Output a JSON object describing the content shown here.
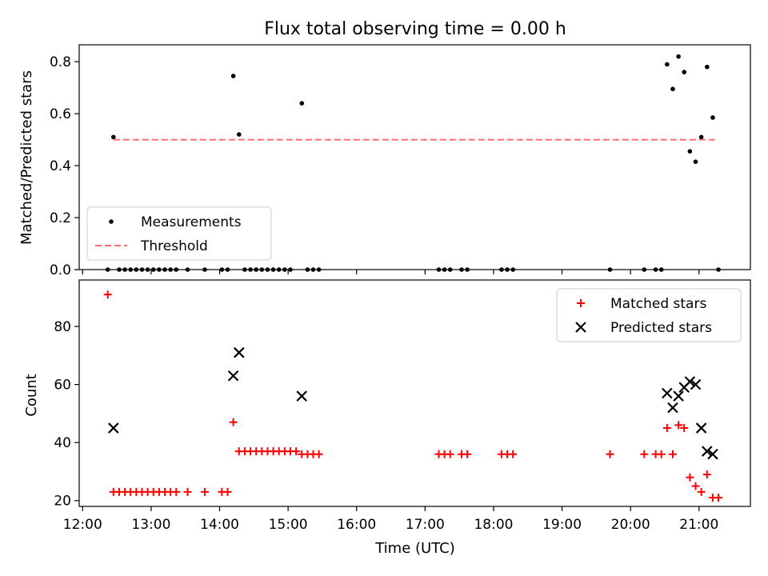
{
  "chart_data": [
    {
      "type": "scatter",
      "title": "Flux total observing time = 0.00 h",
      "xlabel": "",
      "ylabel": "Matched/Predicted stars",
      "xlim": [
        "11:57",
        "21:45"
      ],
      "ylim": [
        0,
        0.865
      ],
      "yticks": [
        "0.0",
        "0.2",
        "0.4",
        "0.6",
        "0.8"
      ],
      "ytick_values": [
        0,
        0.2,
        0.4,
        0.6,
        0.8
      ],
      "legend": {
        "placement": "lower-left",
        "entries": [
          "Measurements",
          "Threshold"
        ]
      },
      "threshold": {
        "name": "Threshold",
        "color": "#ff6f6f",
        "y": 0.5,
        "x": [
          "12:27",
          "21:15"
        ]
      },
      "series": [
        {
          "name": "Measurements",
          "color": "#000000",
          "points": [
            [
              "12:27",
              0.51
            ],
            [
              "14:12",
              0.745
            ],
            [
              "14:17",
              0.52
            ],
            [
              "15:12",
              0.64
            ],
            [
              "20:32",
              0.79
            ],
            [
              "20:37",
              0.695
            ],
            [
              "20:42",
              0.82
            ],
            [
              "20:47",
              0.76
            ],
            [
              "20:52",
              0.455
            ],
            [
              "20:57",
              0.415
            ],
            [
              "21:02",
              0.51
            ],
            [
              "21:07",
              0.78
            ],
            [
              "21:12",
              0.585
            ],
            [
              "12:22",
              0
            ],
            [
              "12:32",
              0
            ],
            [
              "12:37",
              0
            ],
            [
              "12:42",
              0
            ],
            [
              "12:47",
              0
            ],
            [
              "12:52",
              0
            ],
            [
              "12:57",
              0
            ],
            [
              "13:02",
              0
            ],
            [
              "13:07",
              0
            ],
            [
              "13:12",
              0
            ],
            [
              "13:17",
              0
            ],
            [
              "13:22",
              0
            ],
            [
              "13:32",
              0
            ],
            [
              "13:47",
              0
            ],
            [
              "14:02",
              0
            ],
            [
              "14:07",
              0
            ],
            [
              "14:22",
              0
            ],
            [
              "14:27",
              0
            ],
            [
              "14:32",
              0
            ],
            [
              "14:37",
              0
            ],
            [
              "14:42",
              0
            ],
            [
              "14:47",
              0
            ],
            [
              "14:52",
              0
            ],
            [
              "14:57",
              0
            ],
            [
              "15:02",
              0
            ],
            [
              "15:17",
              0
            ],
            [
              "15:22",
              0
            ],
            [
              "15:27",
              0
            ],
            [
              "17:12",
              0
            ],
            [
              "17:17",
              0
            ],
            [
              "17:22",
              0
            ],
            [
              "17:32",
              0
            ],
            [
              "17:37",
              0
            ],
            [
              "18:07",
              0
            ],
            [
              "18:12",
              0
            ],
            [
              "18:17",
              0
            ],
            [
              "19:42",
              0
            ],
            [
              "20:12",
              0
            ],
            [
              "20:22",
              0
            ],
            [
              "20:27",
              0
            ],
            [
              "21:17",
              0
            ]
          ]
        }
      ]
    },
    {
      "type": "scatter",
      "title": "",
      "xlabel": "Time (UTC)",
      "ylabel": "Count",
      "xlim": [
        "11:57",
        "21:45"
      ],
      "ylim": [
        18,
        96
      ],
      "xticks": [
        "12:00",
        "13:00",
        "14:00",
        "15:00",
        "16:00",
        "17:00",
        "18:00",
        "19:00",
        "20:00",
        "21:00"
      ],
      "yticks": [
        "20",
        "40",
        "60",
        "80"
      ],
      "ytick_values": [
        20,
        40,
        60,
        80
      ],
      "legend": {
        "placement": "upper-right",
        "entries": [
          "Matched stars",
          "Predicted stars"
        ]
      },
      "series": [
        {
          "name": "Matched stars",
          "color": "#ff0000",
          "marker": "plus",
          "points": [
            [
              "12:22",
              91
            ],
            [
              "12:27",
              23
            ],
            [
              "12:32",
              23
            ],
            [
              "12:37",
              23
            ],
            [
              "12:42",
              23
            ],
            [
              "12:47",
              23
            ],
            [
              "12:52",
              23
            ],
            [
              "12:57",
              23
            ],
            [
              "13:02",
              23
            ],
            [
              "13:07",
              23
            ],
            [
              "13:12",
              23
            ],
            [
              "13:17",
              23
            ],
            [
              "13:22",
              23
            ],
            [
              "13:32",
              23
            ],
            [
              "13:47",
              23
            ],
            [
              "14:02",
              23
            ],
            [
              "14:07",
              23
            ],
            [
              "14:12",
              47
            ],
            [
              "14:17",
              37
            ],
            [
              "14:22",
              37
            ],
            [
              "14:27",
              37
            ],
            [
              "14:32",
              37
            ],
            [
              "14:37",
              37
            ],
            [
              "14:42",
              37
            ],
            [
              "14:47",
              37
            ],
            [
              "14:52",
              37
            ],
            [
              "14:57",
              37
            ],
            [
              "15:02",
              37
            ],
            [
              "15:07",
              37
            ],
            [
              "15:12",
              36
            ],
            [
              "15:17",
              36
            ],
            [
              "15:22",
              36
            ],
            [
              "15:27",
              36
            ],
            [
              "17:12",
              36
            ],
            [
              "17:17",
              36
            ],
            [
              "17:22",
              36
            ],
            [
              "17:32",
              36
            ],
            [
              "17:37",
              36
            ],
            [
              "18:07",
              36
            ],
            [
              "18:12",
              36
            ],
            [
              "18:17",
              36
            ],
            [
              "19:42",
              36
            ],
            [
              "20:12",
              36
            ],
            [
              "20:22",
              36
            ],
            [
              "20:27",
              36
            ],
            [
              "20:37",
              36
            ],
            [
              "20:32",
              45
            ],
            [
              "20:42",
              46
            ],
            [
              "20:47",
              45
            ],
            [
              "20:52",
              28
            ],
            [
              "20:57",
              25
            ],
            [
              "21:02",
              23
            ],
            [
              "21:07",
              29
            ],
            [
              "21:12",
              21
            ],
            [
              "21:17",
              21
            ]
          ]
        },
        {
          "name": "Predicted stars",
          "color": "#000000",
          "marker": "x",
          "points": [
            [
              "12:27",
              45
            ],
            [
              "14:12",
              63
            ],
            [
              "14:17",
              71
            ],
            [
              "15:12",
              56
            ],
            [
              "20:32",
              57
            ],
            [
              "20:37",
              52
            ],
            [
              "20:42",
              56
            ],
            [
              "20:47",
              59
            ],
            [
              "20:52",
              61
            ],
            [
              "20:57",
              60
            ],
            [
              "21:02",
              45
            ],
            [
              "21:07",
              37
            ],
            [
              "21:12",
              36
            ]
          ]
        }
      ]
    }
  ]
}
